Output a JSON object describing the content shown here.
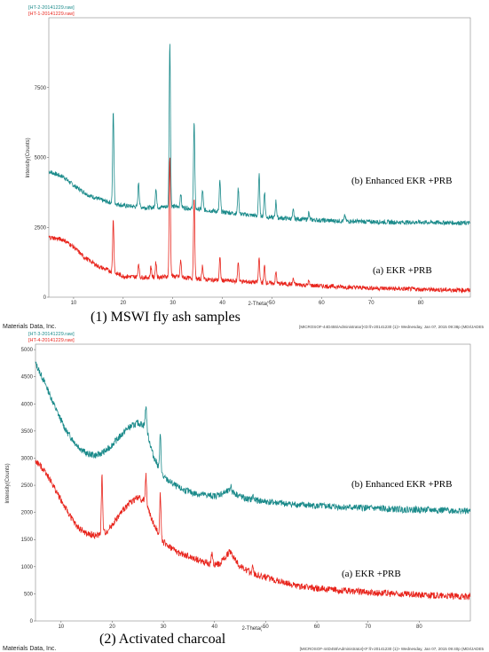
{
  "colors": {
    "teal": "#1a8a8a",
    "red": "#e8241c",
    "axis": "#333333",
    "frame": "#888888"
  },
  "footer_left": "Materials Data, Inc.",
  "chart_data": [
    {
      "type": "line",
      "header_labels": [
        "[HT-2-20141229.raw]",
        "[HT-1-20141229.raw]"
      ],
      "title": "(1) MSWI fly ash samples",
      "xlabel": "2-Theta(°",
      "ylabel": "Intensity(Counts)",
      "xlim": [
        5,
        90
      ],
      "ylim": [
        0,
        10000
      ],
      "x_ticks": [
        10,
        20,
        30,
        40,
        50,
        60,
        70,
        80
      ],
      "y_ticks": [
        0,
        2500,
        5000,
        7500
      ],
      "footer_right": "[MICROSOF-44D455\\Administrator]<D:\\h-20141230 (1)> Wednesday, Jan 07, 2015 09:38p (MDI/JADE5",
      "series": [
        {
          "name": "(b) Enhanced EKR +PRB",
          "color": "teal",
          "x": [
            5,
            8,
            10,
            13,
            16,
            20,
            25,
            30,
            35,
            40,
            45,
            50,
            55,
            60,
            65,
            70,
            75,
            80,
            85,
            90
          ],
          "y": [
            4500,
            4300,
            4000,
            3650,
            3450,
            3280,
            3200,
            3250,
            3150,
            3050,
            2950,
            2850,
            2800,
            2750,
            2720,
            2700,
            2680,
            2680,
            2670,
            2650
          ],
          "peaks": [
            [
              18,
              3300
            ],
            [
              23.1,
              900
            ],
            [
              26.6,
              700
            ],
            [
              29.4,
              5900
            ],
            [
              31.6,
              500
            ],
            [
              34.3,
              3100
            ],
            [
              36,
              700
            ],
            [
              39.5,
              1100
            ],
            [
              43.2,
              900
            ],
            [
              47.4,
              1500
            ],
            [
              48.5,
              900
            ],
            [
              50.8,
              600
            ],
            [
              54.3,
              300
            ],
            [
              57.4,
              250
            ],
            [
              64.7,
              200
            ]
          ]
        },
        {
          "name": "(a) EKR +PRB",
          "color": "red",
          "x": [
            5,
            8,
            10,
            12,
            15,
            20,
            25,
            30,
            35,
            40,
            45,
            50,
            55,
            60,
            65,
            70,
            75,
            80,
            85,
            90
          ],
          "y": [
            2150,
            2050,
            1800,
            1450,
            1100,
            750,
            700,
            750,
            650,
            600,
            550,
            500,
            450,
            400,
            360,
            330,
            300,
            280,
            260,
            250
          ],
          "peaks": [
            [
              18,
              1900
            ],
            [
              23.1,
              500
            ],
            [
              25.6,
              400
            ],
            [
              26.6,
              550
            ],
            [
              29.4,
              4300
            ],
            [
              31.6,
              600
            ],
            [
              34.3,
              2900
            ],
            [
              36,
              500
            ],
            [
              39.5,
              800
            ],
            [
              43.2,
              700
            ],
            [
              47.4,
              900
            ],
            [
              48.5,
              600
            ],
            [
              50.8,
              400
            ],
            [
              54.3,
              200
            ],
            [
              57.4,
              150
            ]
          ]
        }
      ]
    },
    {
      "type": "line",
      "header_labels": [
        "[HT-3-20141229.raw]",
        "[HT-4-20141229.raw]"
      ],
      "title": "(2) Activated charcoal",
      "xlabel": "2-Theta(°",
      "ylabel": "Intensity(Counts)",
      "xlim": [
        5,
        90
      ],
      "ylim": [
        0,
        5100
      ],
      "x_ticks": [
        10,
        20,
        30,
        40,
        50,
        60,
        70,
        80
      ],
      "y_ticks": [
        0,
        500,
        1000,
        1500,
        2000,
        2500,
        3000,
        3500,
        4000,
        4500,
        5000
      ],
      "footer_right": "[MICROSOF-44D455\\Administrator]<F:\\h-20141230 (1)> Wednesday, Jan 07, 2015 09:40p (MDI/JADE5",
      "series": [
        {
          "name": "(b) Enhanced EKR +PRB",
          "color": "teal",
          "x": [
            5,
            7,
            9,
            11,
            13,
            15,
            17,
            19,
            21,
            23,
            25,
            26.5,
            28,
            30,
            33,
            36,
            40,
            43,
            46,
            50,
            55,
            60,
            65,
            70,
            75,
            80,
            85,
            90
          ],
          "y": [
            4750,
            4350,
            3900,
            3500,
            3250,
            3080,
            3050,
            3150,
            3350,
            3550,
            3650,
            3600,
            3050,
            2650,
            2450,
            2350,
            2300,
            2400,
            2250,
            2200,
            2150,
            2120,
            2100,
            2080,
            2060,
            2050,
            2040,
            2020
          ],
          "peaks": [
            [
              26.6,
              400
            ],
            [
              29.4,
              650
            ],
            [
              43.2,
              100
            ],
            [
              47.5,
              80
            ]
          ]
        },
        {
          "name": "(a) EKR +PRB",
          "color": "red",
          "x": [
            5,
            7,
            9,
            11,
            13,
            15,
            17,
            19,
            21,
            23,
            25,
            26.5,
            28,
            30,
            33,
            36,
            39,
            41,
            43,
            45,
            48,
            52,
            56,
            60,
            65,
            70,
            75,
            80,
            85,
            90
          ],
          "y": [
            2950,
            2750,
            2400,
            2050,
            1750,
            1600,
            1570,
            1650,
            1900,
            2150,
            2280,
            2200,
            1800,
            1450,
            1250,
            1150,
            1050,
            1050,
            1280,
            1000,
            850,
            750,
            650,
            600,
            560,
            530,
            500,
            480,
            460,
            450
          ],
          "peaks": [
            [
              18,
              1050
            ],
            [
              26.6,
              500
            ],
            [
              29.4,
              800
            ],
            [
              39.5,
              200
            ],
            [
              47.5,
              150
            ]
          ]
        }
      ]
    }
  ]
}
